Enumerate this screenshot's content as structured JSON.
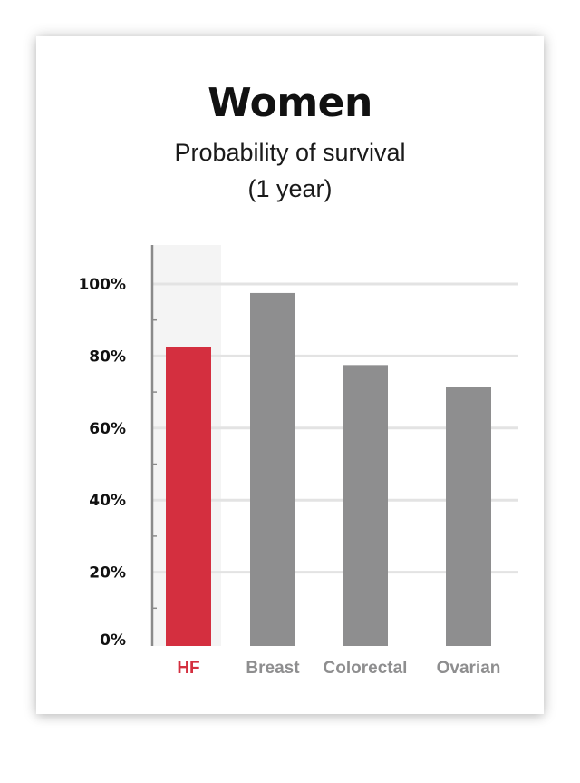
{
  "chart_data": {
    "type": "bar",
    "title": "Women",
    "subtitle_lines": [
      "Probability of survival",
      "(1 year)"
    ],
    "categories": [
      "HF",
      "Breast",
      "Colorectal",
      "Ovarian"
    ],
    "values": [
      83,
      98,
      78,
      72
    ],
    "ylim": [
      0,
      100
    ],
    "yticks": [
      0,
      20,
      40,
      60,
      80,
      100
    ],
    "ytick_labels": [
      "0%",
      "20%",
      "40%",
      "60%",
      "80%",
      "100%"
    ],
    "grid": true,
    "highlight_category": "HF"
  },
  "colors": {
    "highlight_bar": "#d42f3f",
    "default_bar": "#8e8e8f",
    "highlight_label": "#d42f3f",
    "default_label": "#8e8e8f",
    "highlight_band": "#f4f4f4",
    "gridline": "#e3e3e3",
    "axis": "#8a8a8a"
  }
}
